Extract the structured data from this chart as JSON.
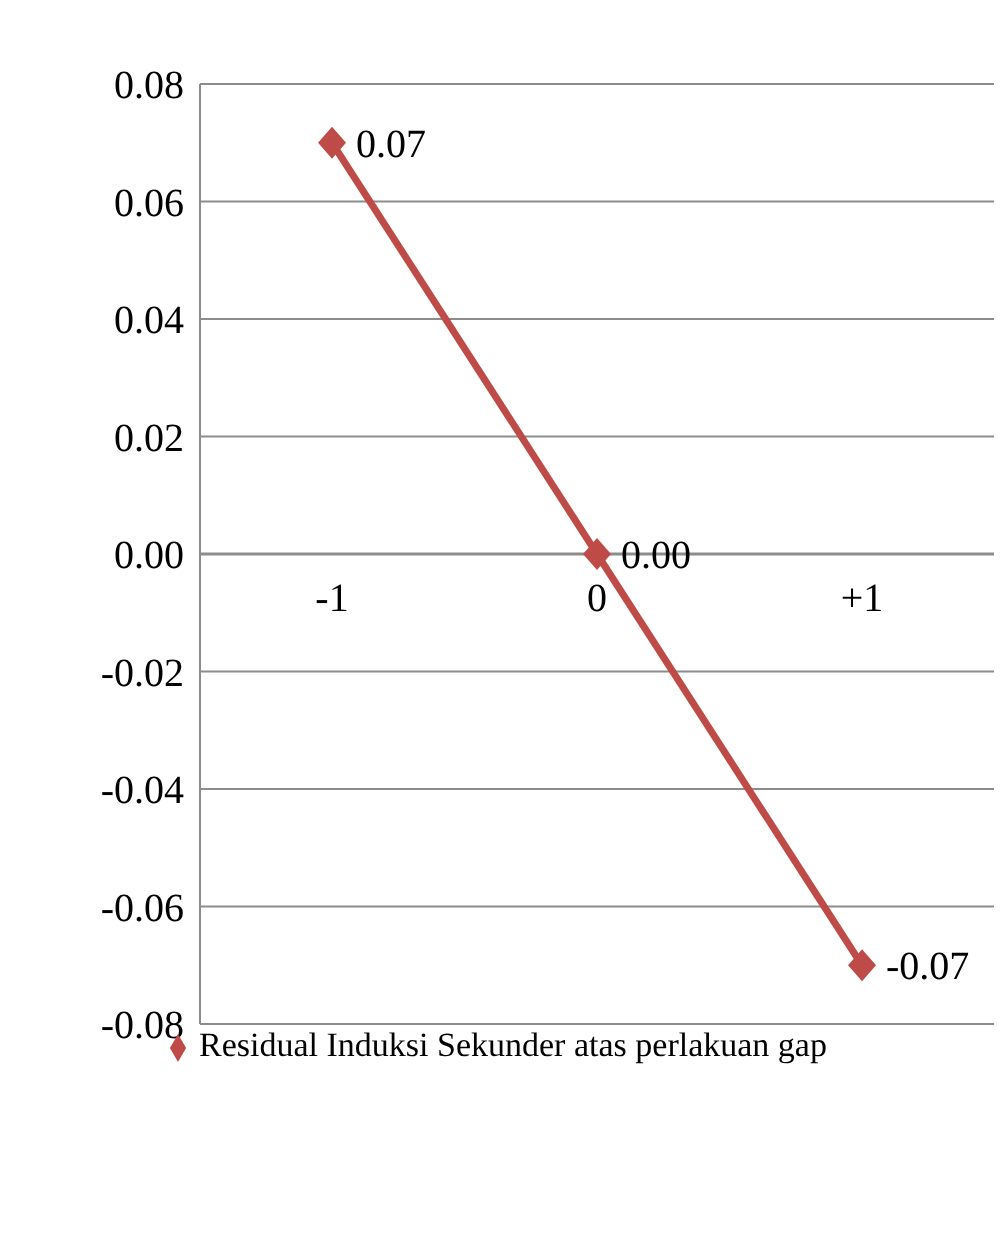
{
  "chart_data": {
    "type": "line",
    "categories": [
      "-1",
      "0",
      "+1"
    ],
    "series": [
      {
        "name": "Residual Induksi Sekunder atas perlakuan gap",
        "color": "#be4b48",
        "values": [
          0.07,
          0,
          -0.07
        ],
        "value_labels": [
          "0.07",
          "0.00",
          "-0.07"
        ]
      }
    ],
    "ylim": [
      -0.08,
      0.08
    ],
    "yticks": [
      {
        "value": -0.08,
        "label": "-0.08"
      },
      {
        "value": -0.06,
        "label": "-0.06"
      },
      {
        "value": -0.04,
        "label": "-0.04"
      },
      {
        "value": -0.02,
        "label": "-0.02"
      },
      {
        "value": 0,
        "label": "0.00"
      },
      {
        "value": 0.02,
        "label": "0.02"
      },
      {
        "value": 0.04,
        "label": "0.04"
      },
      {
        "value": 0.06,
        "label": "0.06"
      },
      {
        "value": 0.08,
        "label": "0.08"
      }
    ],
    "grid": "y",
    "legend": "bottom",
    "marker": "diamond",
    "line_style": "solid"
  }
}
